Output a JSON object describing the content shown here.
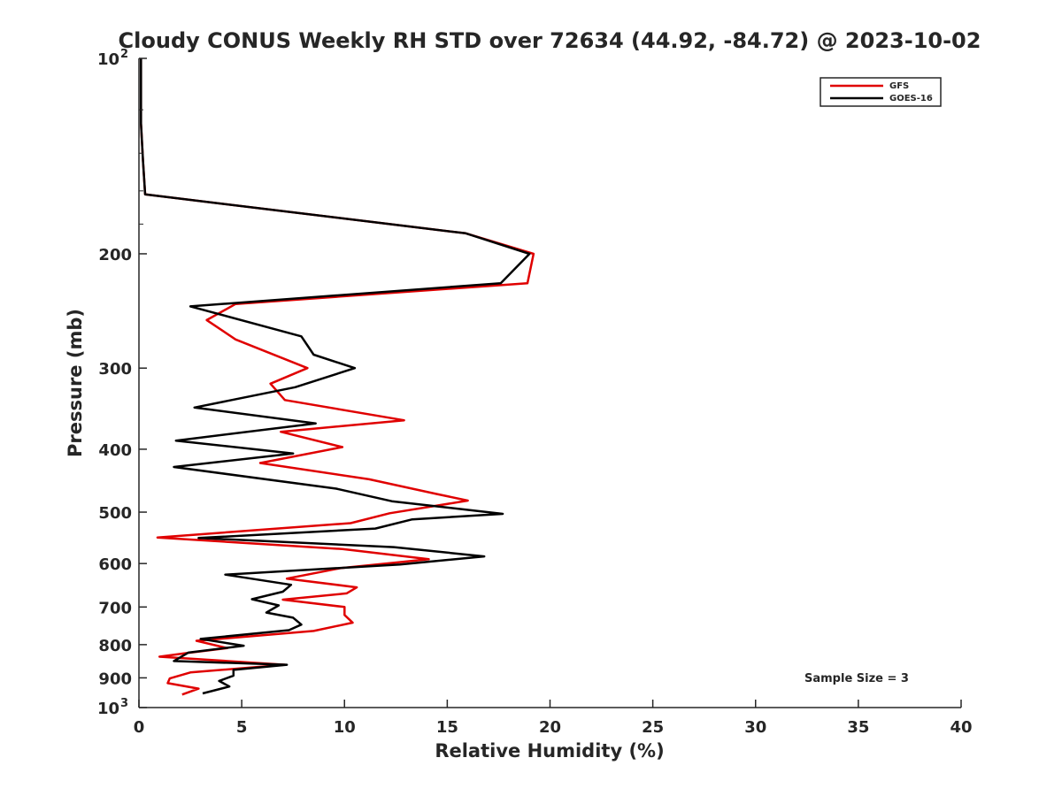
{
  "chart_data": {
    "type": "line",
    "title": "Cloudy CONUS Weekly RH STD over 72634 (44.92, -84.72) @ 2023-10-02",
    "xlabel": "Relative Humidity (%)",
    "ylabel": "Pressure (mb)",
    "xlim": [
      0,
      40
    ],
    "ylim": [
      100,
      1000
    ],
    "y_scale": "log",
    "y_reversed": true,
    "xticks": [
      0,
      5,
      10,
      15,
      20,
      25,
      30,
      35,
      40
    ],
    "yticks": [
      {
        "value": 100,
        "label": "10",
        "sup": "2"
      },
      {
        "value": 200,
        "label": "200",
        "sup": ""
      },
      {
        "value": 300,
        "label": "300",
        "sup": ""
      },
      {
        "value": 400,
        "label": "400",
        "sup": ""
      },
      {
        "value": 500,
        "label": "500",
        "sup": ""
      },
      {
        "value": 600,
        "label": "600",
        "sup": ""
      },
      {
        "value": 700,
        "label": "700",
        "sup": ""
      },
      {
        "value": 800,
        "label": "800",
        "sup": ""
      },
      {
        "value": 900,
        "label": "900",
        "sup": ""
      },
      {
        "value": 1000,
        "label": "10",
        "sup": "3"
      }
    ],
    "grid": false,
    "legend_position": "top-right",
    "annotation": "Sample Size = 3",
    "series": [
      {
        "name": "GFS",
        "color": "#e00000",
        "points": [
          [
            0.1,
            100
          ],
          [
            0.1,
            110
          ],
          [
            0.1,
            126
          ],
          [
            0.2,
            144
          ],
          [
            0.3,
            162
          ],
          [
            15.9,
            186
          ],
          [
            19.2,
            200
          ],
          [
            18.9,
            222
          ],
          [
            4.7,
            239
          ],
          [
            3.3,
            253
          ],
          [
            4.7,
            271
          ],
          [
            8.2,
            300
          ],
          [
            6.4,
            317
          ],
          [
            7.1,
            336
          ],
          [
            12.9,
            361
          ],
          [
            6.9,
            376
          ],
          [
            9.9,
            397
          ],
          [
            5.9,
            420
          ],
          [
            11.2,
            445
          ],
          [
            14.5,
            469
          ],
          [
            16.0,
            480
          ],
          [
            12.2,
            502
          ],
          [
            10.3,
            520
          ],
          [
            0.9,
            547
          ],
          [
            9.9,
            570
          ],
          [
            14.1,
            591
          ],
          [
            9.8,
            610
          ],
          [
            7.2,
            633
          ],
          [
            10.6,
            653
          ],
          [
            10.1,
            667
          ],
          [
            7.0,
            682
          ],
          [
            10.0,
            700
          ],
          [
            10.0,
            720
          ],
          [
            10.4,
            740
          ],
          [
            8.5,
            762
          ],
          [
            2.8,
            789
          ],
          [
            4.3,
            810
          ],
          [
            2.2,
            825
          ],
          [
            1.0,
            835
          ],
          [
            7.1,
            859
          ],
          [
            2.5,
            883
          ],
          [
            1.5,
            902
          ],
          [
            1.4,
            917
          ],
          [
            2.9,
            935
          ],
          [
            2.1,
            955
          ]
        ]
      },
      {
        "name": "GOES-16",
        "color": "#000000",
        "points": [
          [
            0.1,
            100
          ],
          [
            0.1,
            110
          ],
          [
            0.1,
            126
          ],
          [
            0.2,
            144
          ],
          [
            0.3,
            162
          ],
          [
            15.9,
            186
          ],
          [
            19.0,
            200
          ],
          [
            17.6,
            222
          ],
          [
            2.5,
            241
          ],
          [
            7.9,
            268
          ],
          [
            8.5,
            286
          ],
          [
            10.5,
            300
          ],
          [
            7.6,
            321
          ],
          [
            2.7,
            345
          ],
          [
            8.6,
            365
          ],
          [
            1.8,
            388
          ],
          [
            7.5,
            406
          ],
          [
            1.7,
            426
          ],
          [
            9.6,
            460
          ],
          [
            12.3,
            481
          ],
          [
            17.7,
            503
          ],
          [
            13.3,
            513
          ],
          [
            11.5,
            530
          ],
          [
            2.9,
            548
          ],
          [
            12.4,
            566
          ],
          [
            16.8,
            585
          ],
          [
            12.7,
            602
          ],
          [
            4.2,
            624
          ],
          [
            7.4,
            647
          ],
          [
            7.0,
            663
          ],
          [
            5.5,
            681
          ],
          [
            6.8,
            696
          ],
          [
            6.2,
            714
          ],
          [
            7.5,
            727
          ],
          [
            7.9,
            745
          ],
          [
            7.3,
            760
          ],
          [
            3.0,
            784
          ],
          [
            5.1,
            803
          ],
          [
            2.4,
            823
          ],
          [
            1.7,
            848
          ],
          [
            7.2,
            859
          ],
          [
            4.6,
            875
          ],
          [
            4.6,
            893
          ],
          [
            3.9,
            910
          ],
          [
            4.4,
            928
          ],
          [
            3.1,
            951
          ]
        ]
      }
    ]
  }
}
